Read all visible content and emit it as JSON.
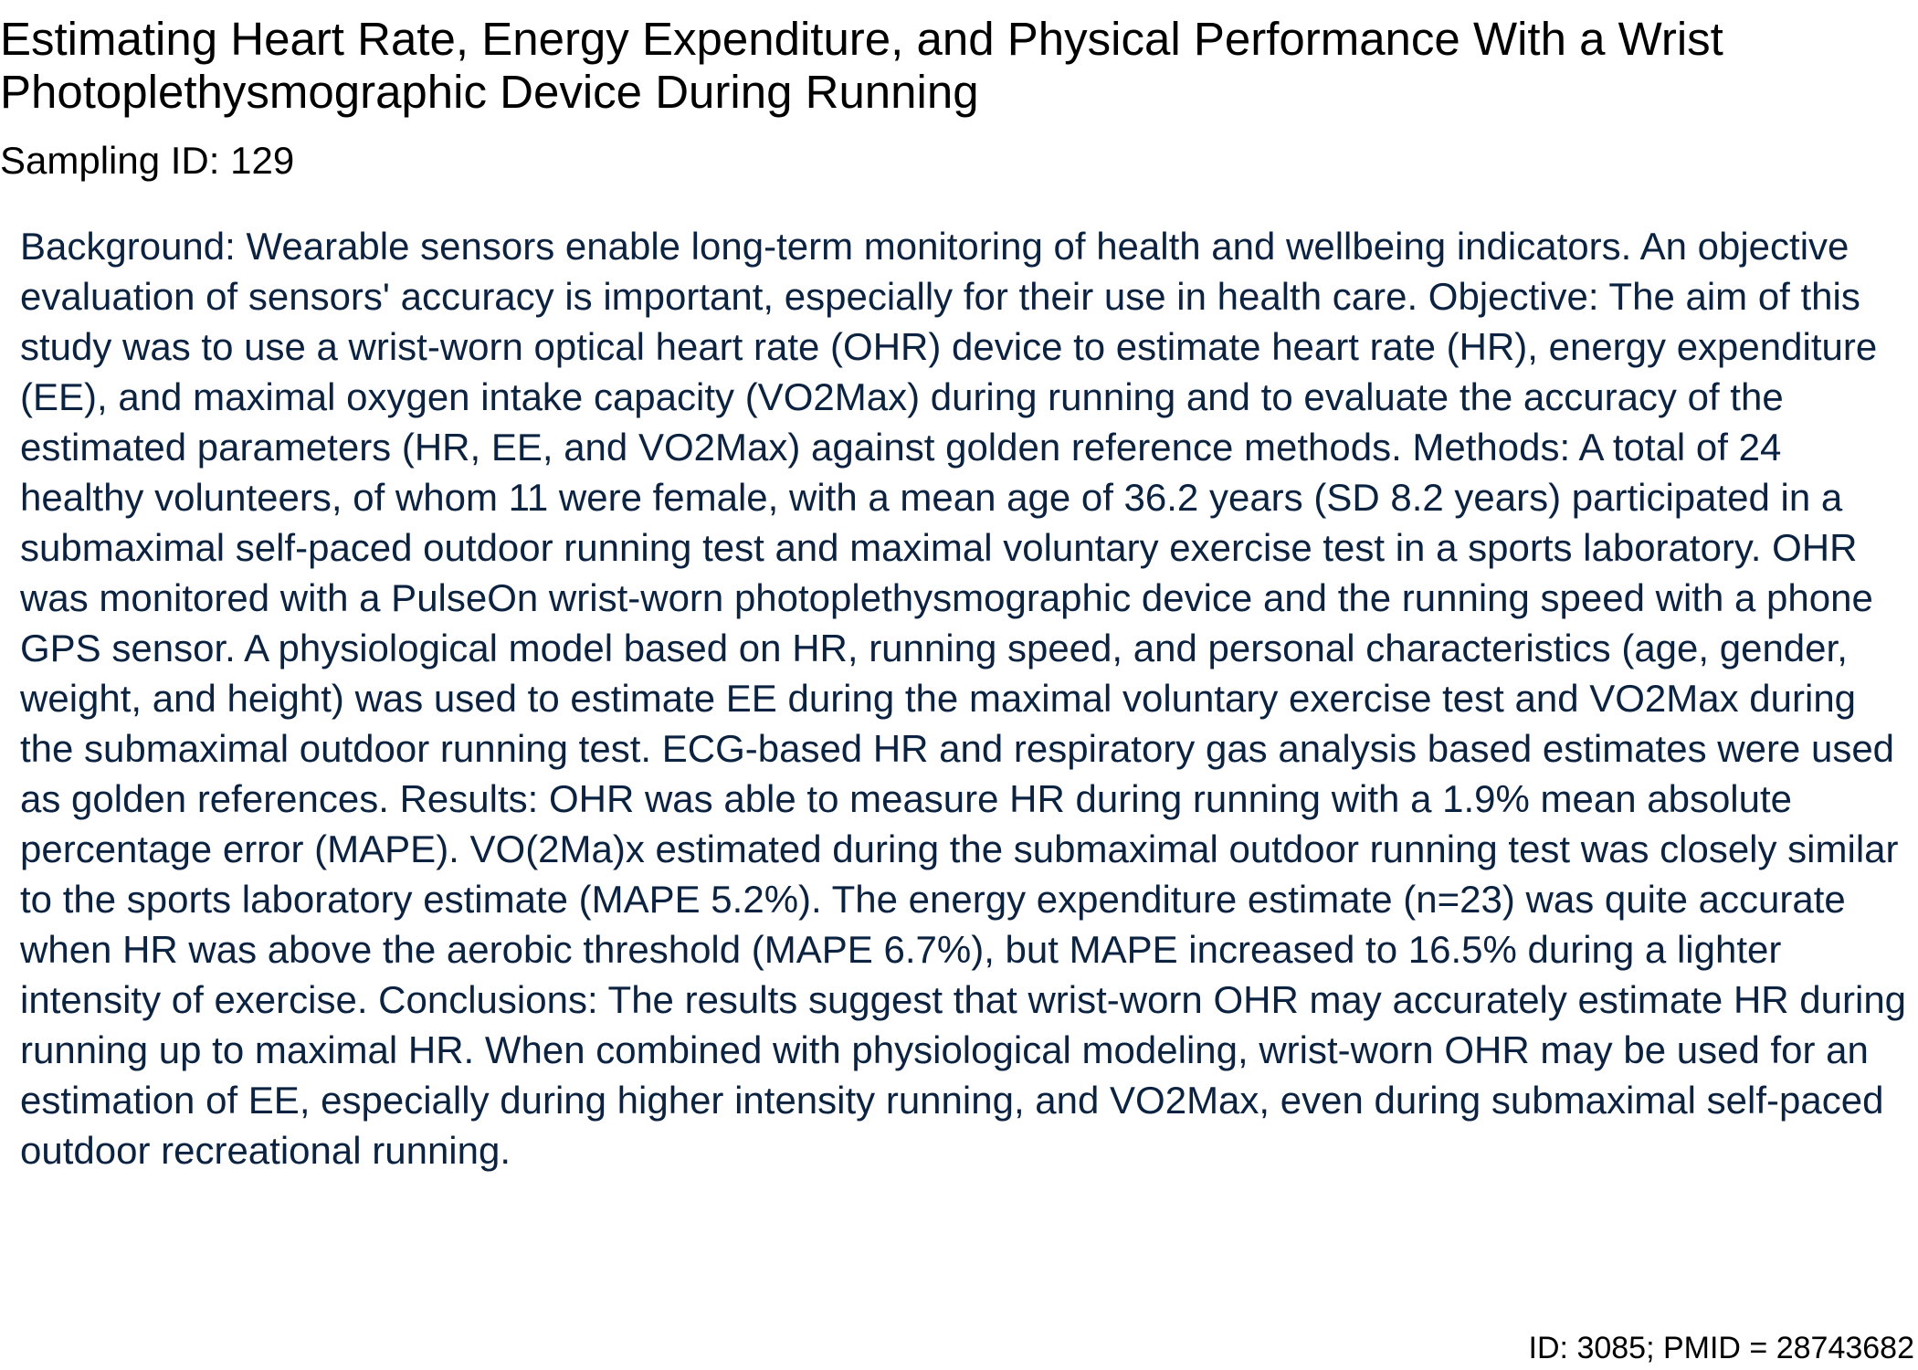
{
  "document": {
    "title": "Estimating Heart Rate, Energy Expenditure, and Physical Performance With a Wrist Photoplethysmographic Device During Running",
    "sampling_id": "Sampling ID: 129",
    "abstract": "Background: Wearable sensors enable long-term monitoring of health and wellbeing indicators. An objective evaluation of sensors' accuracy is important, especially for their use in health care. Objective: The aim of this study was to use a wrist-worn optical heart rate (OHR) device to estimate heart rate (HR), energy expenditure (EE), and maximal oxygen intake capacity (VO2Max) during running and to evaluate the accuracy of the estimated parameters (HR, EE, and VO2Max) against golden reference methods. Methods: A total of 24 healthy volunteers, of whom 11 were female, with a mean age of 36.2 years (SD 8.2 years) participated in a submaximal self-paced outdoor running test and maximal voluntary exercise test in a sports laboratory. OHR was monitored with a PulseOn wrist-worn photoplethysmographic device and the running speed with a phone GPS sensor. A physiological model based on HR, running speed, and personal characteristics (age, gender, weight, and height) was used to estimate EE during the maximal voluntary exercise test and VO2Max during the submaximal outdoor running test. ECG-based HR and respiratory gas analysis based estimates were used as golden references. Results: OHR was able to measure HR during running with a 1.9% mean absolute percentage error (MAPE). VO(2Ma)x estimated during the submaximal outdoor running test was closely similar to the sports laboratory estimate (MAPE 5.2%). The energy expenditure estimate (n=23) was quite accurate when HR was above the aerobic threshold (MAPE 6.7%), but MAPE increased to 16.5% during a lighter intensity of exercise. Conclusions: The results suggest that wrist-worn OHR may accurately estimate HR during running up to maximal HR. When combined with physiological modeling, wrist-worn OHR may be used for an estimation of EE, especially during higher intensity running, and VO2Max, even during submaximal self-paced outdoor recreational running.",
    "footer_id": "ID: 3085; PMID = 28743682"
  },
  "colors": {
    "title_text": "#000000",
    "abstract_text": "#0b2240",
    "background": "#ffffff"
  }
}
